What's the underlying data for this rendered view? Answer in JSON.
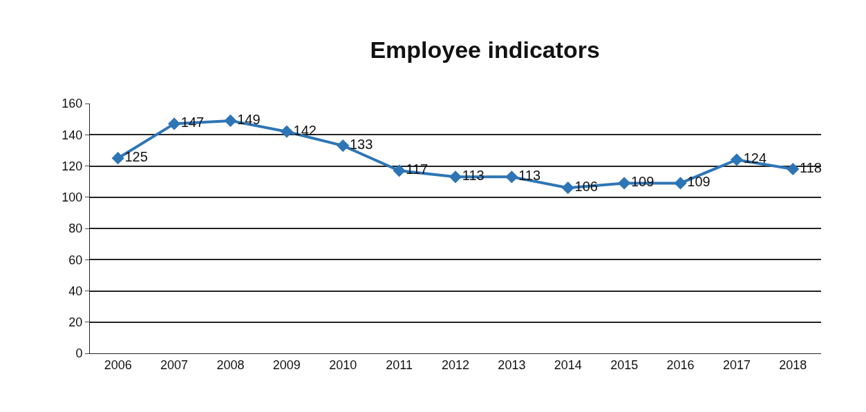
{
  "chart_data": {
    "type": "line",
    "title": "Employee indicators",
    "categories": [
      "2006",
      "2007",
      "2008",
      "2009",
      "2010",
      "2011",
      "2012",
      "2013",
      "2014",
      "2015",
      "2016",
      "2017",
      "2018"
    ],
    "series": [
      {
        "color": "#2e75b6",
        "values": [
          125,
          147,
          149,
          142,
          133,
          117,
          113,
          113,
          106,
          109,
          109,
          124,
          118
        ]
      }
    ],
    "ylim": [
      0,
      160
    ],
    "yticks": [
      0,
      20,
      40,
      60,
      80,
      100,
      120,
      140,
      160
    ],
    "grid": "y",
    "legend": false,
    "marker": "diamond",
    "line_style": "solid",
    "data_labels": true
  }
}
